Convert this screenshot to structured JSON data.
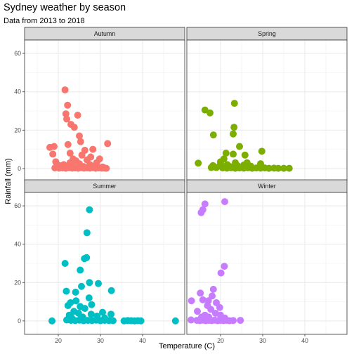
{
  "chart_data": {
    "type": "scatter",
    "title": "Sydney weather by season",
    "subtitle": "Data from 2013 to 2018",
    "xlabel": "Temperature (C)",
    "ylabel": "Rainfall (mm)",
    "xlim": [
      12,
      50
    ],
    "ylim": [
      -7,
      67
    ],
    "x_ticks": [
      20,
      30,
      40
    ],
    "y_ticks": [
      0,
      20,
      40,
      60
    ],
    "x_ticks_labels": [
      "20",
      "30",
      "40"
    ],
    "y_ticks_labels": [
      "0",
      "20",
      "40",
      "60"
    ],
    "grid": true,
    "legend": "none",
    "panels": [
      {
        "name": "Autumn",
        "color": "#F8766D",
        "points": [
          [
            21.6,
            41
          ],
          [
            22.2,
            33
          ],
          [
            21.8,
            28.5
          ],
          [
            24.6,
            27.8
          ],
          [
            22.0,
            25.8
          ],
          [
            23.0,
            23
          ],
          [
            23.8,
            21.5
          ],
          [
            25.0,
            17
          ],
          [
            25.3,
            14
          ],
          [
            18.0,
            11
          ],
          [
            22.3,
            12.5
          ],
          [
            19.0,
            11.5
          ],
          [
            31.7,
            13
          ],
          [
            18.7,
            7.5
          ],
          [
            26.3,
            9.5
          ],
          [
            28.2,
            10
          ],
          [
            22.8,
            8
          ],
          [
            25.6,
            7
          ],
          [
            27.7,
            6
          ],
          [
            23.5,
            5
          ],
          [
            29.8,
            5
          ],
          [
            24.2,
            4
          ],
          [
            26.8,
            4.5
          ],
          [
            19.4,
            3.5
          ],
          [
            22.8,
            3
          ],
          [
            29.1,
            3
          ],
          [
            25.0,
            2.5
          ],
          [
            21.3,
            2
          ],
          [
            27.5,
            2
          ],
          [
            20.3,
            1.5
          ],
          [
            23.4,
            1.2
          ],
          [
            26.0,
            1.0
          ],
          [
            28.7,
            1.5
          ],
          [
            30.5,
            0.8
          ],
          [
            19.2,
            0.3
          ],
          [
            20.2,
            0.2
          ],
          [
            21.0,
            0.3
          ],
          [
            21.8,
            0.1
          ],
          [
            22.6,
            0.4
          ],
          [
            23.3,
            0.2
          ],
          [
            24.0,
            0.3
          ],
          [
            24.7,
            0.1
          ],
          [
            25.4,
            0.4
          ],
          [
            26.1,
            0.2
          ],
          [
            26.8,
            0.3
          ],
          [
            27.5,
            0.2
          ],
          [
            28.2,
            0.4
          ],
          [
            28.9,
            0.1
          ],
          [
            29.6,
            0.3
          ],
          [
            30.3,
            0.2
          ],
          [
            31.0,
            0.2
          ],
          [
            31.4,
            0.1
          ]
        ]
      },
      {
        "name": "Spring",
        "color": "#7CAE00",
        "points": [
          [
            23.3,
            34
          ],
          [
            16.3,
            30.5
          ],
          [
            17.5,
            29
          ],
          [
            23.2,
            21.5
          ],
          [
            18.3,
            17.5
          ],
          [
            23.0,
            18
          ],
          [
            24.5,
            11.5
          ],
          [
            29.8,
            9
          ],
          [
            21.3,
            8
          ],
          [
            23.0,
            7.5
          ],
          [
            25.8,
            7
          ],
          [
            20.8,
            5
          ],
          [
            20.0,
            3.5
          ],
          [
            18.2,
            1.5
          ],
          [
            14.7,
            2.8
          ],
          [
            23.5,
            3
          ],
          [
            26.3,
            3
          ],
          [
            29.5,
            2.5
          ],
          [
            20.0,
            2.5
          ],
          [
            22.2,
            1.0
          ],
          [
            21.6,
            2
          ],
          [
            24.0,
            1.5
          ],
          [
            25.5,
            1.8
          ],
          [
            27.2,
            1.2
          ],
          [
            17.8,
            0.5
          ],
          [
            19.0,
            0.5
          ],
          [
            20.5,
            0.3
          ],
          [
            21.5,
            0.2
          ],
          [
            22.5,
            0.4
          ],
          [
            23.5,
            0.1
          ],
          [
            24.5,
            0.3
          ],
          [
            25.5,
            0.2
          ],
          [
            26.5,
            0.4
          ],
          [
            27.5,
            0.1
          ],
          [
            28.5,
            0.3
          ],
          [
            29.5,
            0.2
          ],
          [
            30.5,
            0.3
          ],
          [
            31.5,
            0.1
          ],
          [
            32.7,
            0.2
          ],
          [
            33.7,
            0.1
          ],
          [
            35.0,
            0.1
          ],
          [
            36.3,
            0.1
          ]
        ]
      },
      {
        "name": "Summer",
        "color": "#00BFC4",
        "points": [
          [
            27.4,
            58
          ],
          [
            26.8,
            46
          ],
          [
            26.7,
            33
          ],
          [
            26.2,
            32.5
          ],
          [
            21.6,
            30
          ],
          [
            25.2,
            26.5
          ],
          [
            25.5,
            18
          ],
          [
            27.4,
            20
          ],
          [
            29.5,
            19.5
          ],
          [
            21.9,
            15.5
          ],
          [
            24.1,
            15
          ],
          [
            32.6,
            15.8
          ],
          [
            27.3,
            12
          ],
          [
            24.2,
            10.5
          ],
          [
            22.9,
            9.5
          ],
          [
            25.2,
            7.5
          ],
          [
            27.9,
            8.5
          ],
          [
            22.3,
            8
          ],
          [
            26.3,
            6.5
          ],
          [
            23.7,
            5
          ],
          [
            24.8,
            4
          ],
          [
            27.8,
            3.5
          ],
          [
            30.5,
            4.5
          ],
          [
            32.5,
            3.5
          ],
          [
            22.6,
            3
          ],
          [
            23.2,
            1.5
          ],
          [
            29.2,
            2.5
          ],
          [
            25.8,
            2
          ],
          [
            31.0,
            1.5
          ],
          [
            18.5,
            0
          ],
          [
            22.0,
            0.5
          ],
          [
            23.0,
            0.3
          ],
          [
            24.0,
            0.2
          ],
          [
            25.0,
            0.4
          ],
          [
            26.0,
            0.1
          ],
          [
            27.0,
            0.3
          ],
          [
            28.0,
            0.2
          ],
          [
            29.0,
            0.4
          ],
          [
            30.0,
            0.1
          ],
          [
            31.0,
            0.3
          ],
          [
            32.0,
            0.2
          ],
          [
            33.0,
            0.1
          ],
          [
            35.6,
            0
          ],
          [
            36.5,
            0.2
          ],
          [
            37.3,
            0.1
          ],
          [
            38.1,
            0
          ],
          [
            38.9,
            0.1
          ],
          [
            39.6,
            0
          ],
          [
            47.8,
            0
          ]
        ]
      },
      {
        "name": "Winter",
        "color": "#C77CFF",
        "points": [
          [
            16.3,
            61
          ],
          [
            21.0,
            62.2
          ],
          [
            15.8,
            58
          ],
          [
            15.4,
            56.5
          ],
          [
            20.9,
            28.5
          ],
          [
            20.1,
            25
          ],
          [
            18.3,
            16.5
          ],
          [
            15.2,
            14.5
          ],
          [
            18.0,
            13
          ],
          [
            15.8,
            11
          ],
          [
            13.1,
            10.5
          ],
          [
            17.1,
            10.5
          ],
          [
            19.0,
            9.5
          ],
          [
            16.9,
            8
          ],
          [
            19.8,
            7
          ],
          [
            17.7,
            6
          ],
          [
            14.5,
            5
          ],
          [
            18.8,
            4
          ],
          [
            16.3,
            3
          ],
          [
            20.0,
            3
          ],
          [
            15.5,
            2
          ],
          [
            17.2,
            2
          ],
          [
            21.0,
            1.5
          ],
          [
            13.0,
            0.5
          ],
          [
            14.4,
            0.3
          ],
          [
            15.1,
            0.2
          ],
          [
            15.8,
            0.4
          ],
          [
            16.5,
            0.1
          ],
          [
            17.2,
            0.3
          ],
          [
            17.9,
            0.2
          ],
          [
            18.6,
            0.4
          ],
          [
            19.3,
            0.1
          ],
          [
            20.0,
            0.3
          ],
          [
            20.7,
            0.2
          ],
          [
            21.4,
            0.3
          ],
          [
            22.1,
            0.1
          ],
          [
            23.0,
            0.2
          ],
          [
            24.7,
            0.3
          ]
        ]
      }
    ]
  }
}
